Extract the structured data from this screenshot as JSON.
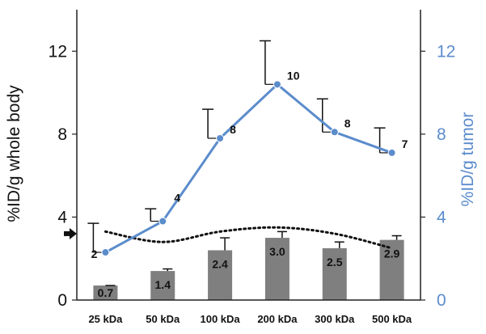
{
  "chart_data": {
    "type": "bar",
    "categories": [
      "25 kDa",
      "50 kDa",
      "100 kDa",
      "200 kDa",
      "300 kDa",
      "500 kDa"
    ],
    "ylabel_left": "%ID/g whole body",
    "ylabel_right": "%ID/g tumor",
    "ylim_left": [
      0,
      14
    ],
    "ylim_right": [
      0,
      14
    ],
    "yticks": [
      0,
      4,
      8,
      12
    ],
    "bars": {
      "axis": "left",
      "color": "#7f7f7f",
      "values": [
        0.7,
        1.4,
        2.4,
        3.0,
        2.5,
        2.9
      ],
      "error_upper": [
        0.7,
        1.5,
        3.0,
        3.3,
        2.8,
        3.1
      ],
      "labels": [
        "0.7",
        "1.4",
        "2.4",
        "3.0",
        "2.5",
        "2.9"
      ]
    },
    "line": {
      "axis": "right",
      "color": "#5b8ccc",
      "values": [
        2.3,
        3.8,
        7.8,
        10.4,
        8.1,
        7.1
      ],
      "error_upper": [
        3.7,
        4.4,
        9.2,
        12.5,
        9.7,
        8.3
      ],
      "labels": [
        "2",
        "4",
        "8",
        "10",
        "8",
        "7"
      ]
    },
    "trend": {
      "style": "dotted",
      "color": "#111111",
      "values": [
        3.3,
        2.8,
        3.3,
        3.5,
        3.2,
        2.5
      ]
    },
    "marker": {
      "symbol": "arrow",
      "value": 3.2,
      "axis": "left"
    }
  }
}
